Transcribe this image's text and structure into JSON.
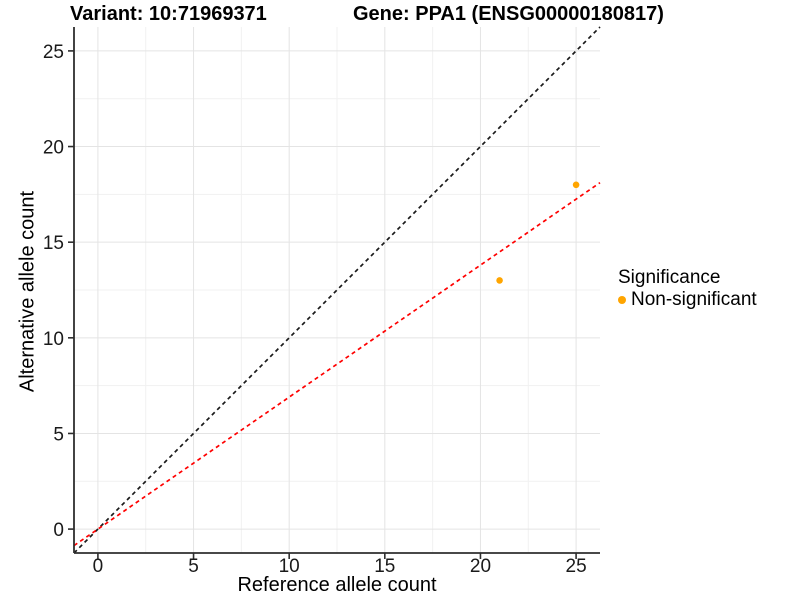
{
  "chart_data": {
    "type": "scatter",
    "title_left": "Variant: 10:71969371",
    "title_right": "Gene: PPA1 (ENSG00000180817)",
    "xlabel": "Reference allele count",
    "ylabel": "Alternative allele count",
    "xlim": [
      -1.25,
      26.25
    ],
    "ylim": [
      -1.25,
      26.25
    ],
    "xticks": [
      0,
      5,
      10,
      15,
      20,
      25
    ],
    "yticks": [
      0,
      5,
      10,
      15,
      20,
      25
    ],
    "minor_ticks": [
      2.5,
      7.5,
      12.5,
      17.5,
      22.5
    ],
    "grid": true,
    "legend_position": "right",
    "series": [
      {
        "name": "Non-significant",
        "color": "#FFA500",
        "points": [
          {
            "x": 21,
            "y": 13
          },
          {
            "x": 25,
            "y": 18
          }
        ]
      }
    ],
    "lines": [
      {
        "name": "identity-line",
        "slope": 1,
        "intercept": 0,
        "color": "#1A1A1A",
        "linetype": "dashed"
      },
      {
        "name": "fit-line",
        "slope": 0.69,
        "intercept": 0,
        "color": "#FF0000",
        "linetype": "dashed"
      }
    ],
    "legend": {
      "title": "Significance",
      "items": [
        {
          "label": "Non-significant",
          "color": "#FFA500"
        }
      ]
    }
  },
  "style": {
    "grid_major": "#E4E4E4",
    "grid_minor": "#F1F1F1",
    "axis_line": "#2E2E2E",
    "tick_text": "#1A1A1A"
  }
}
